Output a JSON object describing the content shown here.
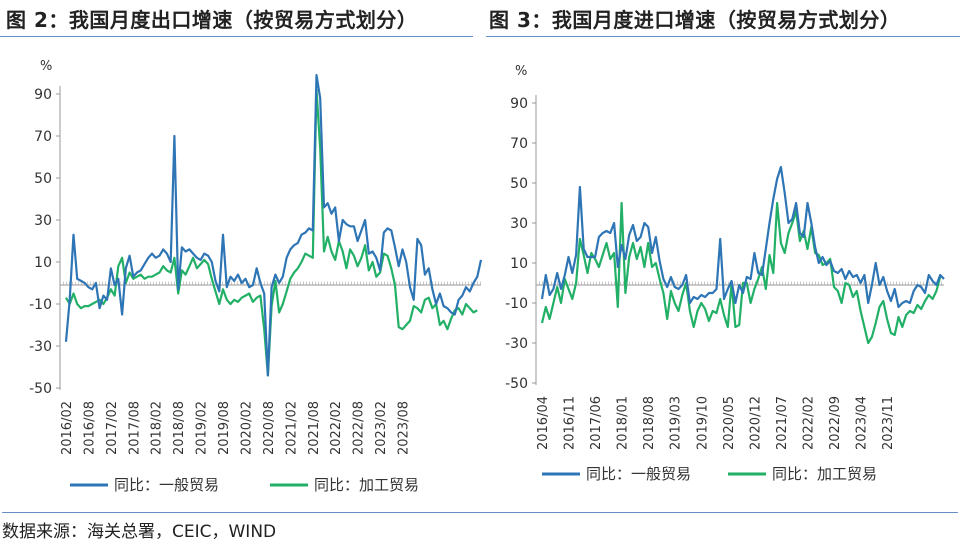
{
  "figures": {
    "left_title": "图 2：我国月度出口增速（按贸易方式划分）",
    "right_title": "图 3：我国月度进口增速（按贸易方式划分）",
    "source": "数据来源：海关总署，CEIC，WIND"
  },
  "colors": {
    "general": "#2e75b6",
    "processing": "#22b067",
    "axis": "#999999",
    "zero": "#cccccc"
  },
  "chart_data": [
    {
      "type": "line",
      "unit_label": "%",
      "ylim": [
        -50,
        100
      ],
      "yticks": [
        90,
        70,
        50,
        30,
        10,
        -10,
        -30,
        -50
      ],
      "xticks": [
        "2016/02",
        "2016/08",
        "2017/02",
        "2017/08",
        "2018/02",
        "2018/08",
        "2019/02",
        "2019/08",
        "2020/02",
        "2020/08",
        "2021/02",
        "2021/08",
        "2022/02",
        "2022/08",
        "2023/02",
        "2023/08"
      ],
      "legend": [
        "同比：一般贸易",
        "同比：加工贸易"
      ],
      "legend_position": "bottom",
      "grid": false,
      "x_start": "2016/02",
      "series": [
        {
          "name": "同比：一般贸易",
          "values": [
            -28,
            -8,
            23,
            2,
            1,
            0,
            -2,
            -3,
            0,
            -12,
            -6,
            -8,
            7,
            -1,
            2,
            -15,
            7,
            13,
            3,
            5,
            6,
            9,
            12,
            14,
            12,
            13,
            16,
            14,
            10,
            70,
            -3,
            17,
            15,
            16,
            14,
            12,
            11,
            14,
            13,
            10,
            1,
            -4,
            23,
            -2,
            3,
            1,
            4,
            0,
            2,
            -2,
            -1,
            7,
            0,
            -5,
            -44,
            -2,
            4,
            0,
            3,
            12,
            16,
            18,
            19,
            23,
            24,
            26,
            25,
            99,
            88,
            36,
            38,
            33,
            36,
            20,
            30,
            28,
            27,
            27,
            20,
            25,
            30,
            14,
            15,
            12,
            6,
            24,
            26,
            25,
            17,
            8,
            16,
            10,
            -2,
            -8,
            21,
            18,
            4,
            7,
            -3,
            -10,
            -5,
            -11,
            -12,
            -14,
            -15,
            -8,
            -6,
            -2,
            -4,
            0,
            3,
            11
          ]
        },
        {
          "name": "同比：加工贸易",
          "values": [
            -7,
            -10,
            -5,
            -10,
            -12,
            -11,
            -11,
            -10,
            -9,
            -8,
            -10,
            -7,
            -3,
            -6,
            8,
            12,
            0,
            5,
            2,
            3,
            4,
            2,
            3,
            3,
            4,
            5,
            8,
            6,
            5,
            12,
            -5,
            6,
            4,
            8,
            12,
            7,
            9,
            11,
            9,
            2,
            -4,
            -10,
            -3,
            -8,
            -10,
            -8,
            -9,
            -7,
            -6,
            -5,
            -9,
            -7,
            -6,
            -22,
            -44,
            -11,
            1,
            -14,
            -10,
            -4,
            2,
            5,
            7,
            10,
            14,
            13,
            12,
            92,
            64,
            15,
            22,
            15,
            11,
            20,
            15,
            7,
            16,
            13,
            8,
            12,
            18,
            6,
            10,
            3,
            5,
            14,
            13,
            7,
            -1,
            -21,
            -22,
            -20,
            -18,
            -11,
            -12,
            -14,
            -8,
            -7,
            -12,
            -10,
            -20,
            -18,
            -22,
            -17,
            -13,
            -12,
            -15,
            -10,
            -12,
            -14,
            -13
          ]
        }
      ]
    },
    {
      "type": "line",
      "unit_label": "%",
      "ylim": [
        -50,
        90
      ],
      "yticks": [
        90,
        70,
        50,
        30,
        10,
        -10,
        -30,
        -50
      ],
      "xticks": [
        "2016/04",
        "2016/11",
        "2017/06",
        "2018/01",
        "2018/08",
        "2019/03",
        "2019/10",
        "2020/05",
        "2020/12",
        "2021/07",
        "2022/02",
        "2022/09",
        "2023/04",
        "2023/11"
      ],
      "legend": [
        "同比：一般贸易",
        "同比：加工贸易"
      ],
      "legend_position": "bottom",
      "grid": false,
      "x_start": "2016/04",
      "series": [
        {
          "name": "同比：一般贸易",
          "values": [
            -8,
            4,
            -6,
            -3,
            5,
            -3,
            4,
            13,
            5,
            14,
            48,
            17,
            13,
            13,
            13,
            23,
            25,
            26,
            25,
            30,
            8,
            19,
            12,
            24,
            29,
            21,
            23,
            30,
            28,
            15,
            23,
            11,
            2,
            -2,
            3,
            -2,
            -3,
            -1,
            4,
            -10,
            -7,
            -8,
            -6,
            -7,
            -5,
            -5,
            -3,
            22,
            -8,
            -3,
            1,
            -10,
            -1,
            -5,
            3,
            2,
            15,
            5,
            4,
            17,
            30,
            42,
            52,
            58,
            45,
            30,
            32,
            40,
            25,
            23,
            40,
            30,
            18,
            10,
            13,
            9,
            11,
            6,
            5,
            7,
            2,
            6,
            3,
            4,
            0,
            4,
            -10,
            -1,
            10,
            -1,
            3,
            -4,
            -9,
            -3,
            -12,
            -10,
            -9,
            -10,
            -4,
            -1,
            -2,
            -5,
            4,
            1,
            -1,
            4,
            2
          ]
        },
        {
          "name": "同比：加工贸易",
          "values": [
            -20,
            -12,
            -18,
            -10,
            -2,
            -10,
            2,
            -3,
            -8,
            0,
            22,
            14,
            5,
            15,
            12,
            8,
            14,
            20,
            12,
            15,
            -12,
            40,
            -5,
            13,
            20,
            12,
            18,
            8,
            20,
            8,
            10,
            2,
            -5,
            -18,
            -4,
            -10,
            -14,
            -6,
            0,
            -14,
            -22,
            -14,
            -10,
            -13,
            -19,
            -14,
            -15,
            -8,
            -16,
            -22,
            0,
            -22,
            -21,
            0,
            0,
            -10,
            -3,
            2,
            8,
            -3,
            14,
            5,
            40,
            20,
            15,
            25,
            30,
            36,
            21,
            26,
            17,
            28,
            15,
            14,
            9,
            10,
            12,
            -2,
            -4,
            -10,
            0,
            -1,
            -7,
            -4,
            -14,
            -22,
            -30,
            -27,
            -20,
            -12,
            -9,
            -18,
            -25,
            -26,
            -17,
            -22,
            -16,
            -14,
            -15,
            -11,
            -13,
            -9,
            -6,
            -8,
            -4,
            3
          ]
        }
      ]
    }
  ]
}
